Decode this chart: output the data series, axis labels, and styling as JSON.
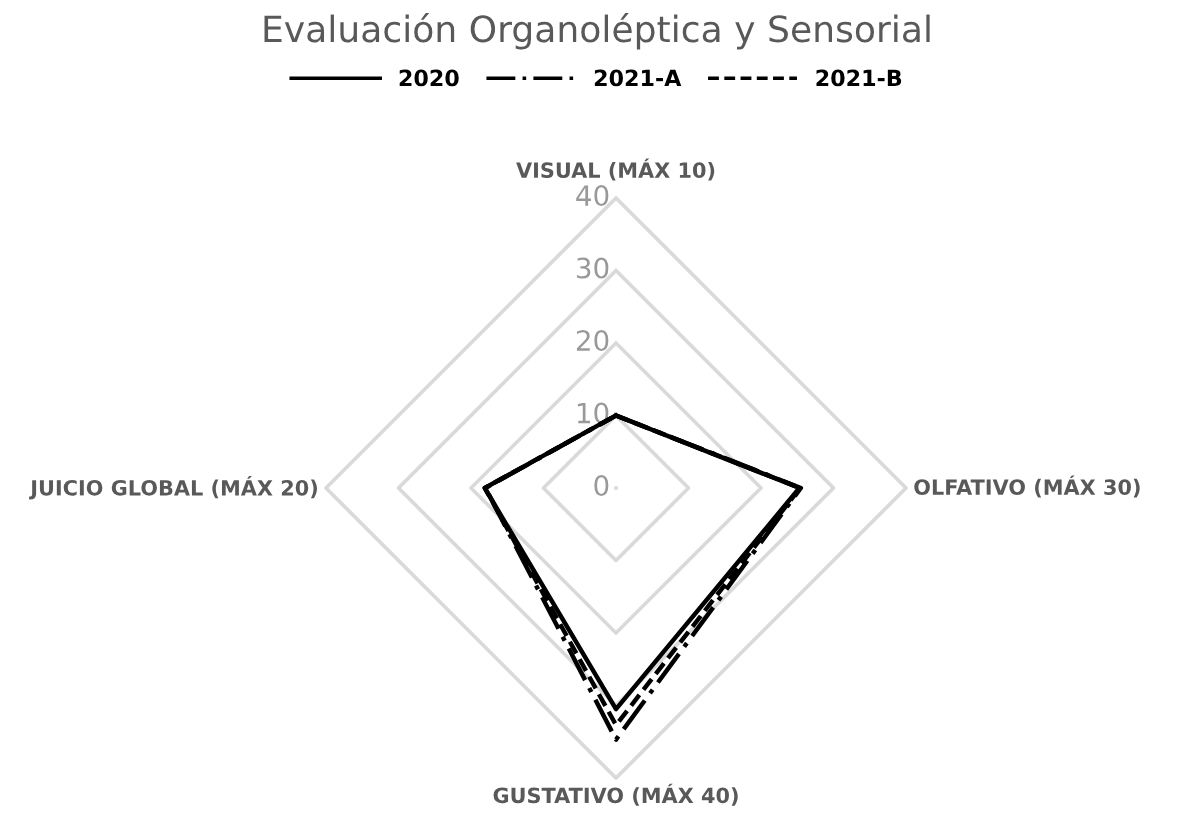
{
  "chart_data": {
    "type": "radar",
    "title": "Evaluación Organoléptica y Sensorial",
    "categories": [
      "VISUAL (MÁX 10)",
      "OLFATIVO (MÁX 30)",
      "GUSTATIVO (MÁX 40)",
      "JUICIO GLOBAL (MÁX 20)"
    ],
    "ylim": [
      0,
      40
    ],
    "yticks": [
      0,
      10,
      20,
      30,
      40
    ],
    "grid": true,
    "legend": "top",
    "marker": "none",
    "series": [
      {
        "name": "2020",
        "color": "#000000",
        "line_style": "solid",
        "values": [
          10,
          25.3,
          30.5,
          18.1
        ]
      },
      {
        "name": "2021-A",
        "color": "#000000",
        "line_style": "dashdot",
        "values": [
          10,
          25.5,
          34.7,
          18
        ]
      },
      {
        "name": "2021-B",
        "color": "#000000",
        "line_style": "dashed",
        "values": [
          10,
          25.4,
          32.7,
          18.1
        ]
      }
    ]
  }
}
